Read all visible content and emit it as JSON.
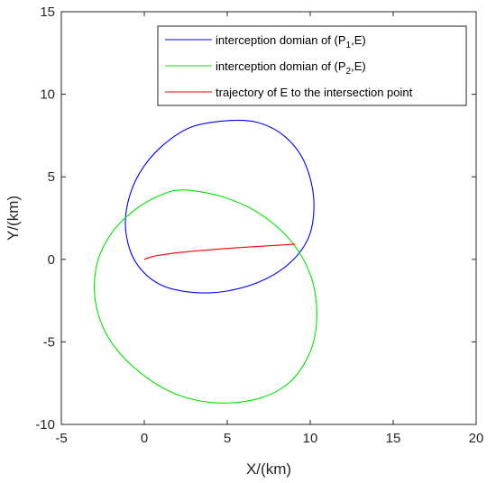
{
  "chart_data": {
    "type": "line",
    "xlabel": "X/(km)",
    "ylabel": "Y/(km)",
    "xlim": [
      -5,
      20
    ],
    "ylim": [
      -10,
      15
    ],
    "xticks": [
      -5,
      0,
      5,
      10,
      15,
      20
    ],
    "yticks": [
      -10,
      -5,
      0,
      5,
      10,
      15
    ],
    "grid": false,
    "legend_position": "top-right",
    "series": [
      {
        "name": "interception domian of (P1,E)",
        "legend_main": "interception domian of (P",
        "legend_sub": "1",
        "legend_tail": ",E)",
        "color": "#0000ff",
        "closed": true,
        "x": [
          5.0,
          6.8,
          8.4,
          9.6,
          10.2,
          10.0,
          9.0,
          7.3,
          5.1,
          2.9,
          0.9,
          -0.5,
          -1.1,
          -1.0,
          -0.3,
          1.0,
          2.8,
          5.0
        ],
        "y": [
          8.4,
          8.3,
          7.5,
          6.0,
          3.8,
          1.6,
          0.0,
          -1.2,
          -1.9,
          -2.0,
          -1.5,
          -0.2,
          1.6,
          3.4,
          5.2,
          6.8,
          8.0,
          8.4
        ]
      },
      {
        "name": "interception domian of (P2,E)",
        "legend_main": "interception domian of (P",
        "legend_sub": "2",
        "legend_tail": ",E)",
        "color": "#00e600",
        "closed": true,
        "x": [
          2.5,
          5.0,
          7.2,
          9.0,
          10.1,
          10.4,
          10.0,
          8.8,
          7.0,
          4.5,
          2.0,
          -0.2,
          -2.0,
          -2.9,
          -2.9,
          -2.1,
          -0.7,
          1.0,
          2.5
        ],
        "y": [
          4.2,
          3.7,
          2.6,
          0.9,
          -1.2,
          -3.5,
          -5.6,
          -7.4,
          -8.4,
          -8.7,
          -8.2,
          -6.9,
          -5.0,
          -2.8,
          -0.5,
          1.4,
          2.9,
          3.9,
          4.2
        ]
      },
      {
        "name": "trajectory of E to the intersection point",
        "legend_main": "trajectory of E to the intersection point",
        "legend_sub": "",
        "legend_tail": "",
        "color": "#ff0000",
        "closed": false,
        "x": [
          0.0,
          0.5,
          1.0,
          2.0,
          3.0,
          4.0,
          5.0,
          6.0,
          7.0,
          8.0,
          9.1
        ],
        "y": [
          0.0,
          0.17,
          0.26,
          0.4,
          0.5,
          0.58,
          0.66,
          0.73,
          0.79,
          0.85,
          0.92
        ]
      }
    ]
  }
}
